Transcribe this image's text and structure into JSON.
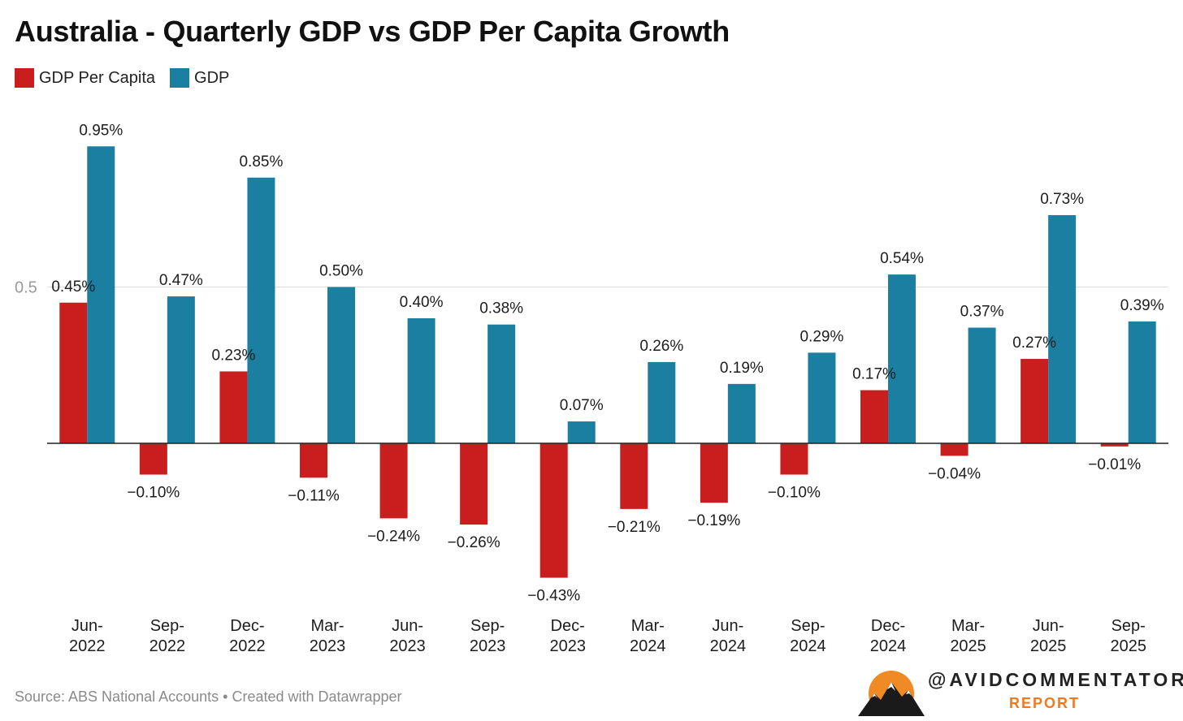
{
  "title": "Australia - Quarterly GDP vs GDP Per Capita Growth",
  "source": "Source: ABS National Accounts • Created with Datawrapper",
  "brand": {
    "name": "@AVIDCOMMENTATOR",
    "sub": "REPORT"
  },
  "colors": {
    "per_capita": "#c81e1e",
    "gdp": "#1b7fa1"
  },
  "chart_data": {
    "type": "bar",
    "title": "Australia - Quarterly GDP vs GDP Per Capita Growth",
    "categories": [
      [
        "Jun-",
        "2022"
      ],
      [
        "Sep-",
        "2022"
      ],
      [
        "Dec-",
        "2022"
      ],
      [
        "Mar-",
        "2023"
      ],
      [
        "Jun-",
        "2023"
      ],
      [
        "Sep-",
        "2023"
      ],
      [
        "Dec-",
        "2023"
      ],
      [
        "Mar-",
        "2024"
      ],
      [
        "Jun-",
        "2024"
      ],
      [
        "Sep-",
        "2024"
      ],
      [
        "Dec-",
        "2024"
      ],
      [
        "Mar-",
        "2025"
      ],
      [
        "Jun-",
        "2025"
      ],
      [
        "Sep-",
        "2025"
      ]
    ],
    "series": [
      {
        "name": "GDP Per Capita",
        "color": "#c81e1e",
        "values": [
          0.45,
          -0.1,
          0.23,
          -0.11,
          -0.24,
          -0.26,
          -0.43,
          -0.21,
          -0.19,
          -0.1,
          0.17,
          -0.04,
          0.27,
          -0.01
        ],
        "labels": [
          "0.45%",
          "−0.10%",
          "0.23%",
          "−0.11%",
          "−0.24%",
          "−0.26%",
          "−0.43%",
          "−0.21%",
          "−0.19%",
          "−0.10%",
          "0.17%",
          "−0.04%",
          "0.27%",
          "−0.01%"
        ]
      },
      {
        "name": "GDP",
        "color": "#1b7fa1",
        "values": [
          0.95,
          0.47,
          0.85,
          0.5,
          0.4,
          0.38,
          0.07,
          0.26,
          0.19,
          0.29,
          0.54,
          0.37,
          0.73,
          0.39
        ],
        "labels": [
          "0.95%",
          "0.47%",
          "0.85%",
          "0.50%",
          "0.40%",
          "0.38%",
          "0.07%",
          "0.26%",
          "0.19%",
          "0.29%",
          "0.54%",
          "0.37%",
          "0.73%",
          "0.39%"
        ]
      }
    ],
    "yticks": [
      {
        "value": 0.5,
        "label": "0.5"
      }
    ],
    "ylim": [
      -0.55,
      1.05
    ],
    "legend": "top-left",
    "grid": true
  }
}
